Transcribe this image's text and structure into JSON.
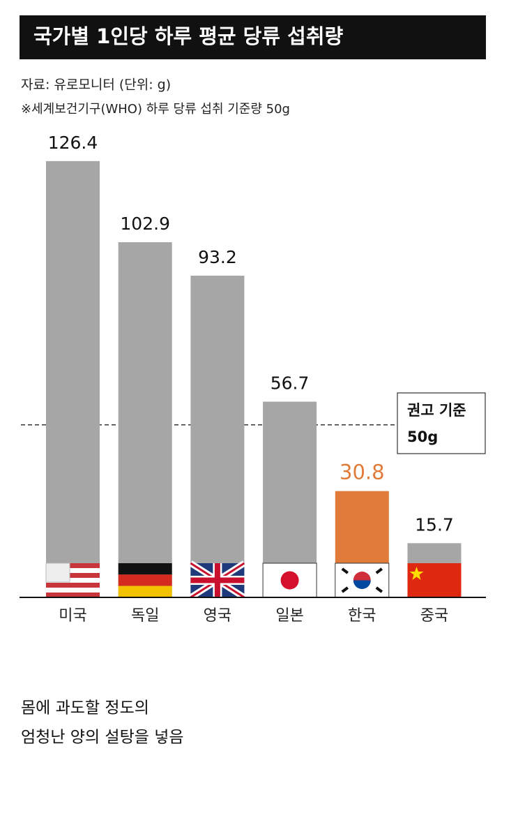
{
  "chart_data": {
    "type": "bar",
    "title": "국가별 1인당 하루 평균 당류 섭취량",
    "source": "자료: 유로모니터 (단위: g)",
    "note": "※세계보건기구(WHO) 하루 당류 섭취 기준량 50g",
    "categories": [
      "미국",
      "독일",
      "영국",
      "일본",
      "한국",
      "중국"
    ],
    "values": [
      126.4,
      102.9,
      93.2,
      56.7,
      30.8,
      15.7
    ],
    "colors": [
      "#a6a6a6",
      "#a6a6a6",
      "#a6a6a6",
      "#a6a6a6",
      "#e07b39",
      "#a6a6a6"
    ],
    "label_colors": [
      "#111111",
      "#111111",
      "#111111",
      "#111111",
      "#e07b39",
      "#111111"
    ],
    "ylim": [
      0,
      130
    ],
    "reference": {
      "value": 50,
      "label": "권고 기준",
      "value_label": "50g"
    }
  },
  "caption": [
    "몸에 과도할 정도의",
    "엄청난 양의 설탕을 넣음"
  ]
}
